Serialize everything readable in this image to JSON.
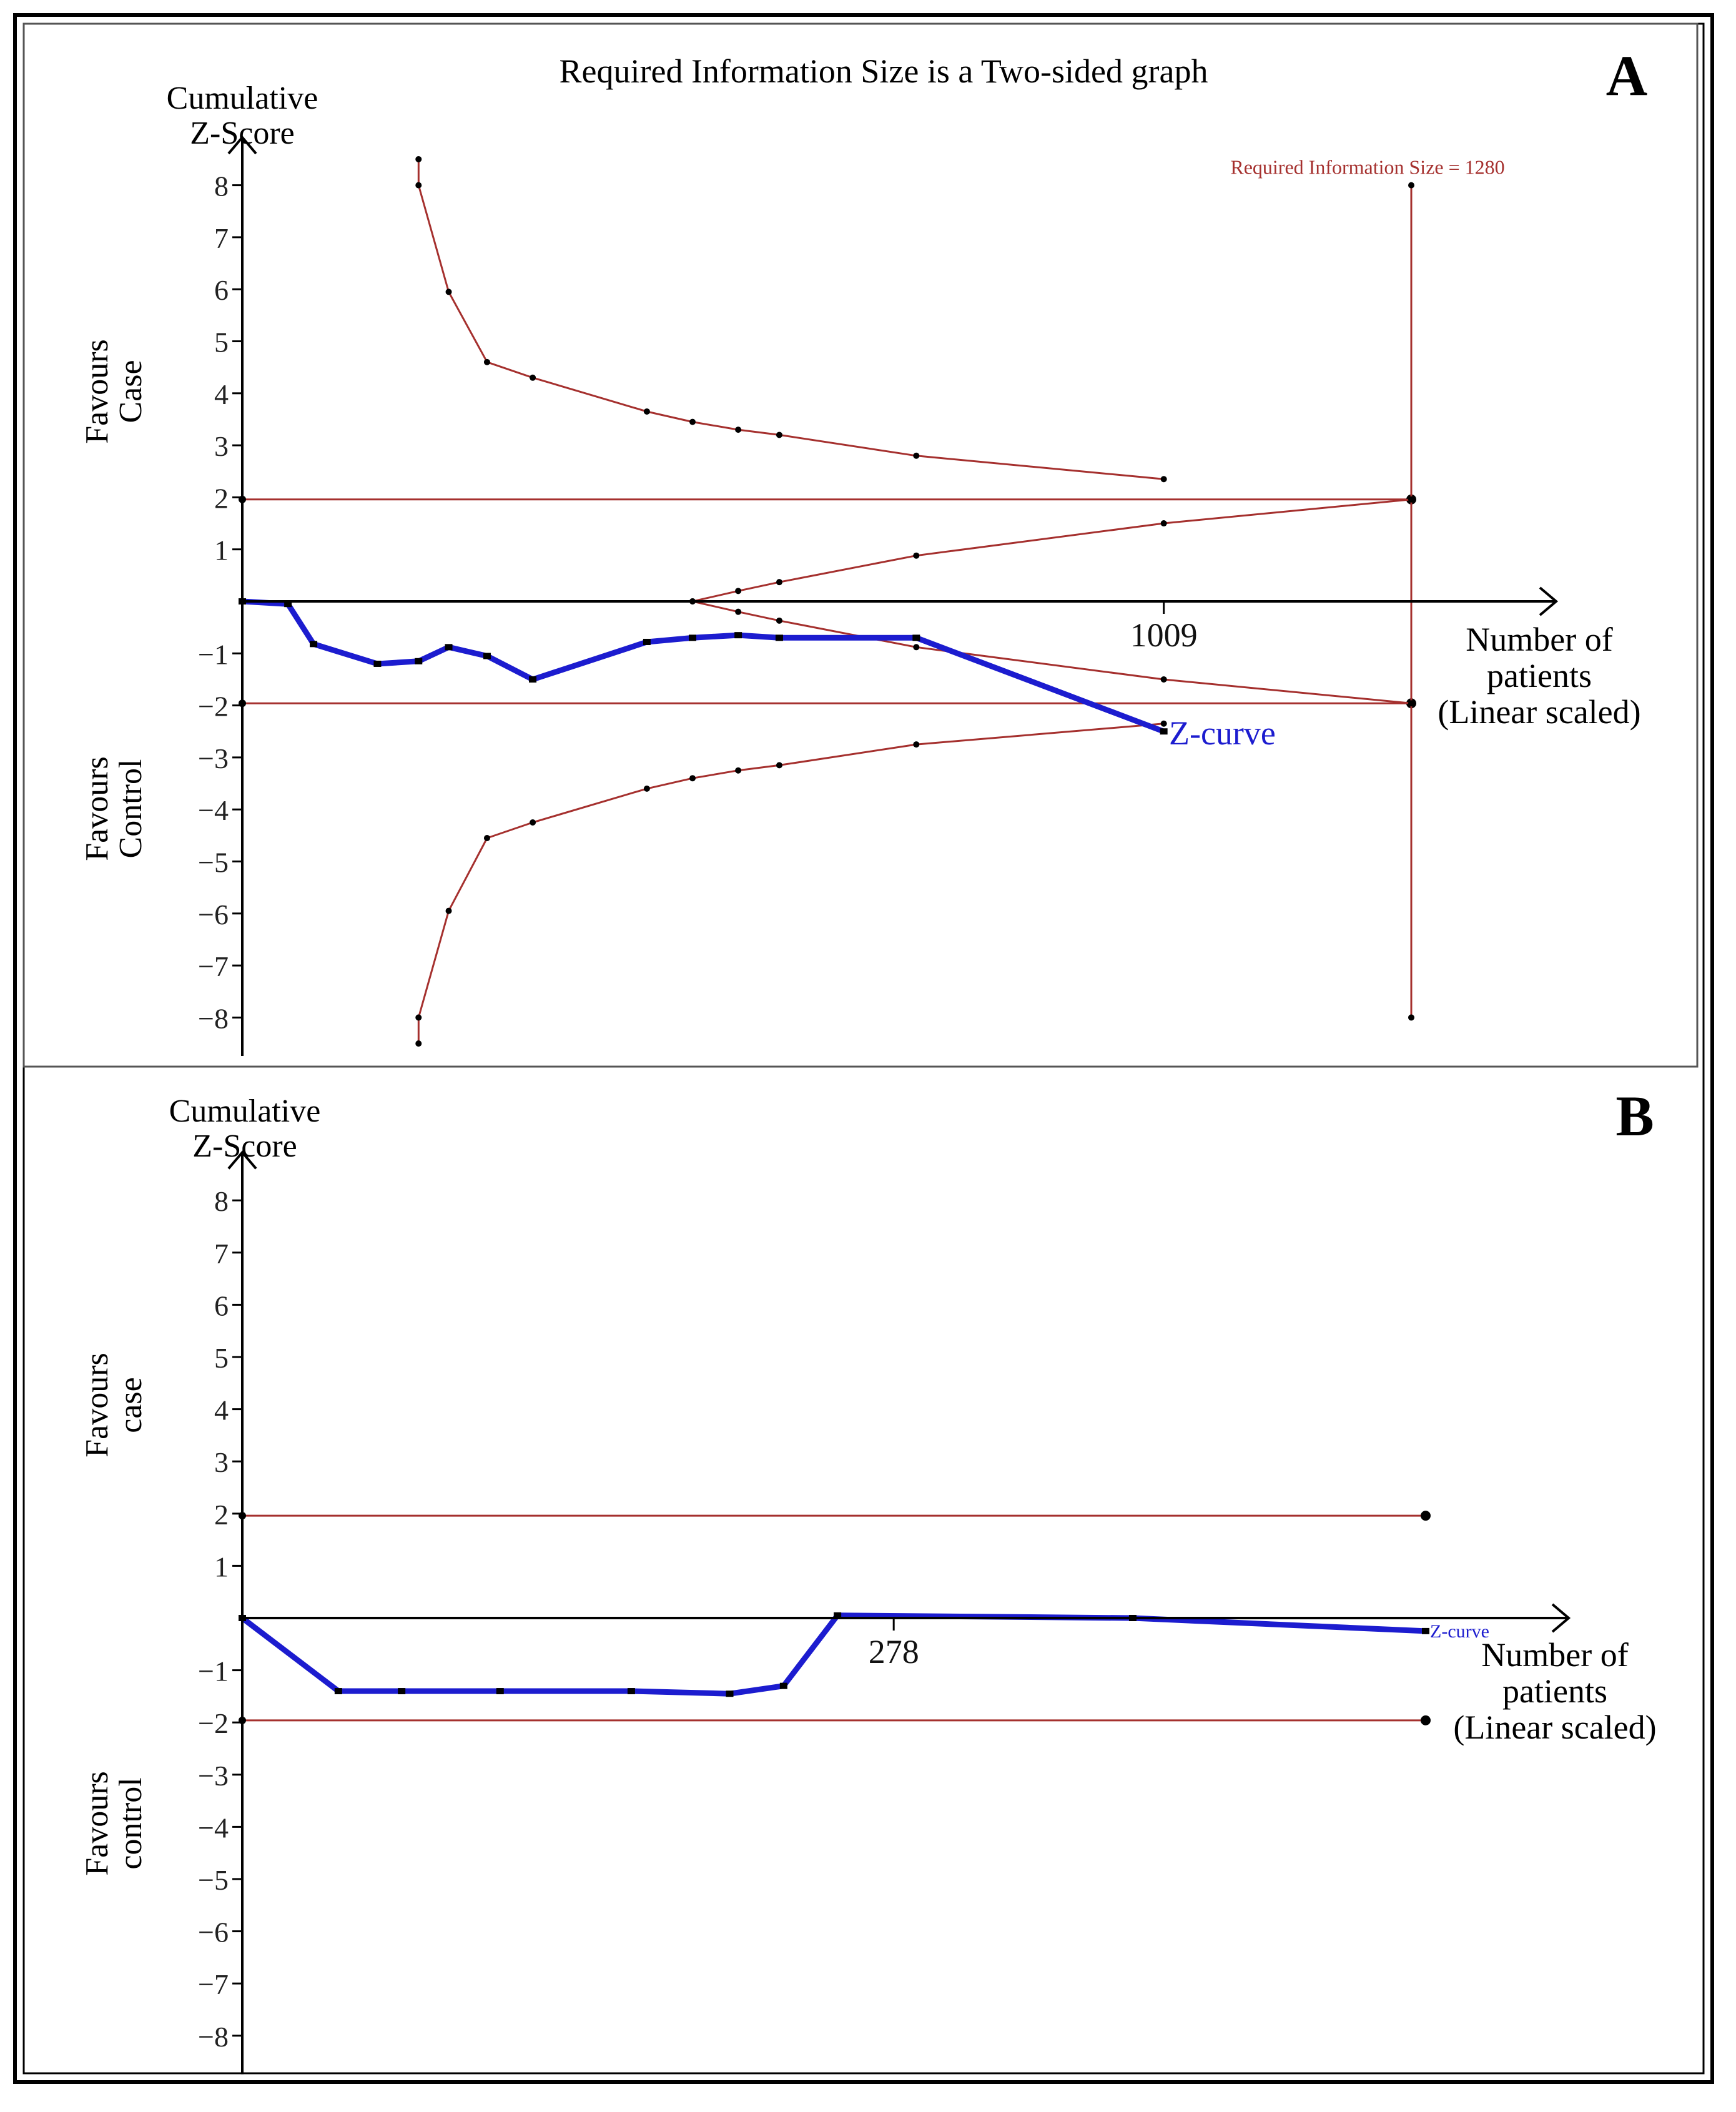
{
  "colors": {
    "boundary": "#a5302e",
    "zcurve": "#1c1ccf",
    "axis": "#000000",
    "frame": "#000000"
  },
  "chart_data": [
    {
      "panel_label": "A",
      "type": "line",
      "title": "Required Information Size is a Two-sided graph",
      "ylabel_lines": [
        "Cumulative",
        "Z-Score"
      ],
      "xlabel_lines": [
        "Number of",
        "patients",
        "(Linear scaled)"
      ],
      "region_upper_lines": [
        "Favours",
        "Case"
      ],
      "region_lower_lines": [
        "Favours",
        "Control"
      ],
      "ylim": [
        -8.5,
        8.8
      ],
      "xlim": [
        0,
        1430
      ],
      "yticks": [
        {
          "value": 8,
          "label": "8"
        },
        {
          "value": 7,
          "label": "7"
        },
        {
          "value": 6,
          "label": "6"
        },
        {
          "value": 5,
          "label": "5"
        },
        {
          "value": 4,
          "label": "4"
        },
        {
          "value": 3,
          "label": "3"
        },
        {
          "value": 2,
          "label": "2"
        },
        {
          "value": 1,
          "label": "1"
        },
        {
          "value": -1,
          "label": "−1"
        },
        {
          "value": -2,
          "label": "−2"
        },
        {
          "value": -3,
          "label": "−3"
        },
        {
          "value": -4,
          "label": "−4"
        },
        {
          "value": -5,
          "label": "−5"
        },
        {
          "value": -6,
          "label": "−6"
        },
        {
          "value": -7,
          "label": "−7"
        },
        {
          "value": -8,
          "label": "−8"
        }
      ],
      "xticks": [
        {
          "value": 1009,
          "label": "1009"
        }
      ],
      "ris": {
        "label": "Required Information Size = 1280",
        "x": 1280,
        "y_top": 8,
        "y_bottom": -8
      },
      "conventional_boundaries": {
        "upper": 1.96,
        "lower": -1.96,
        "x_end": 1280
      },
      "series": [
        {
          "name": "Upper monitoring boundary",
          "role": "boundary",
          "x": [
            193,
            193,
            226,
            268,
            318,
            443,
            493,
            543,
            588,
            738,
            1009
          ],
          "y": [
            8.5,
            8.0,
            5.95,
            4.6,
            4.3,
            3.65,
            3.45,
            3.3,
            3.2,
            2.8,
            2.35
          ]
        },
        {
          "name": "Lower monitoring boundary",
          "role": "boundary",
          "x": [
            193,
            193,
            226,
            268,
            318,
            443,
            493,
            543,
            588,
            738,
            1009
          ],
          "y": [
            -8.5,
            -8.0,
            -5.95,
            -4.55,
            -4.25,
            -3.6,
            -3.4,
            -3.25,
            -3.15,
            -2.75,
            -2.35
          ]
        },
        {
          "name": "Upper futility boundary",
          "role": "boundary",
          "x": [
            493,
            543,
            588,
            738,
            1009,
            1280
          ],
          "y": [
            0.0,
            0.2,
            0.37,
            0.88,
            1.5,
            1.96
          ]
        },
        {
          "name": "Lower futility boundary",
          "role": "boundary",
          "x": [
            493,
            543,
            588,
            738,
            1009,
            1280
          ],
          "y": [
            0.0,
            -0.2,
            -0.37,
            -0.88,
            -1.5,
            -1.96
          ]
        },
        {
          "name": "Z-curve",
          "role": "zcurve",
          "x": [
            0,
            50,
            78,
            148,
            193,
            226,
            268,
            318,
            443,
            493,
            543,
            588,
            738,
            1009
          ],
          "y": [
            0.0,
            -0.05,
            -0.82,
            -1.2,
            -1.15,
            -0.88,
            -1.05,
            -1.5,
            -0.78,
            -0.7,
            -0.65,
            -0.7,
            -0.7,
            -2.5
          ]
        }
      ],
      "zcurve_label": "Z-curve"
    },
    {
      "panel_label": "B",
      "type": "line",
      "ylabel_lines": [
        "Cumulative",
        "Z-Score"
      ],
      "xlabel_lines": [
        "Number of",
        "patients",
        "(Linear scaled)"
      ],
      "region_upper_lines": [
        "Favours",
        "case"
      ],
      "region_lower_lines": [
        "Favours",
        "control"
      ],
      "ylim": [
        -8.5,
        8.8
      ],
      "xlim": [
        0,
        555
      ],
      "yticks": [
        {
          "value": 8,
          "label": "8"
        },
        {
          "value": 7,
          "label": "7"
        },
        {
          "value": 6,
          "label": "6"
        },
        {
          "value": 5,
          "label": "5"
        },
        {
          "value": 4,
          "label": "4"
        },
        {
          "value": 3,
          "label": "3"
        },
        {
          "value": 2,
          "label": "2"
        },
        {
          "value": 1,
          "label": "1"
        },
        {
          "value": -1,
          "label": "−1"
        },
        {
          "value": -2,
          "label": "−2"
        },
        {
          "value": -3,
          "label": "−3"
        },
        {
          "value": -4,
          "label": "−4"
        },
        {
          "value": -5,
          "label": "−5"
        },
        {
          "value": -6,
          "label": "−6"
        },
        {
          "value": -7,
          "label": "−7"
        },
        {
          "value": -8,
          "label": "−8"
        }
      ],
      "xticks": [
        {
          "value": 278,
          "label": "278"
        }
      ],
      "conventional_boundaries": {
        "upper": 1.96,
        "lower": -1.96,
        "x_end": 505
      },
      "series": [
        {
          "name": "Z-curve",
          "role": "zcurve",
          "x": [
            0,
            41,
            68,
            110,
            166,
            208,
            231,
            254,
            380,
            505
          ],
          "y": [
            0.0,
            -1.4,
            -1.4,
            -1.4,
            -1.4,
            -1.45,
            -1.3,
            0.05,
            0.0,
            -0.25
          ]
        }
      ],
      "zcurve_label": "Z-curve"
    }
  ]
}
